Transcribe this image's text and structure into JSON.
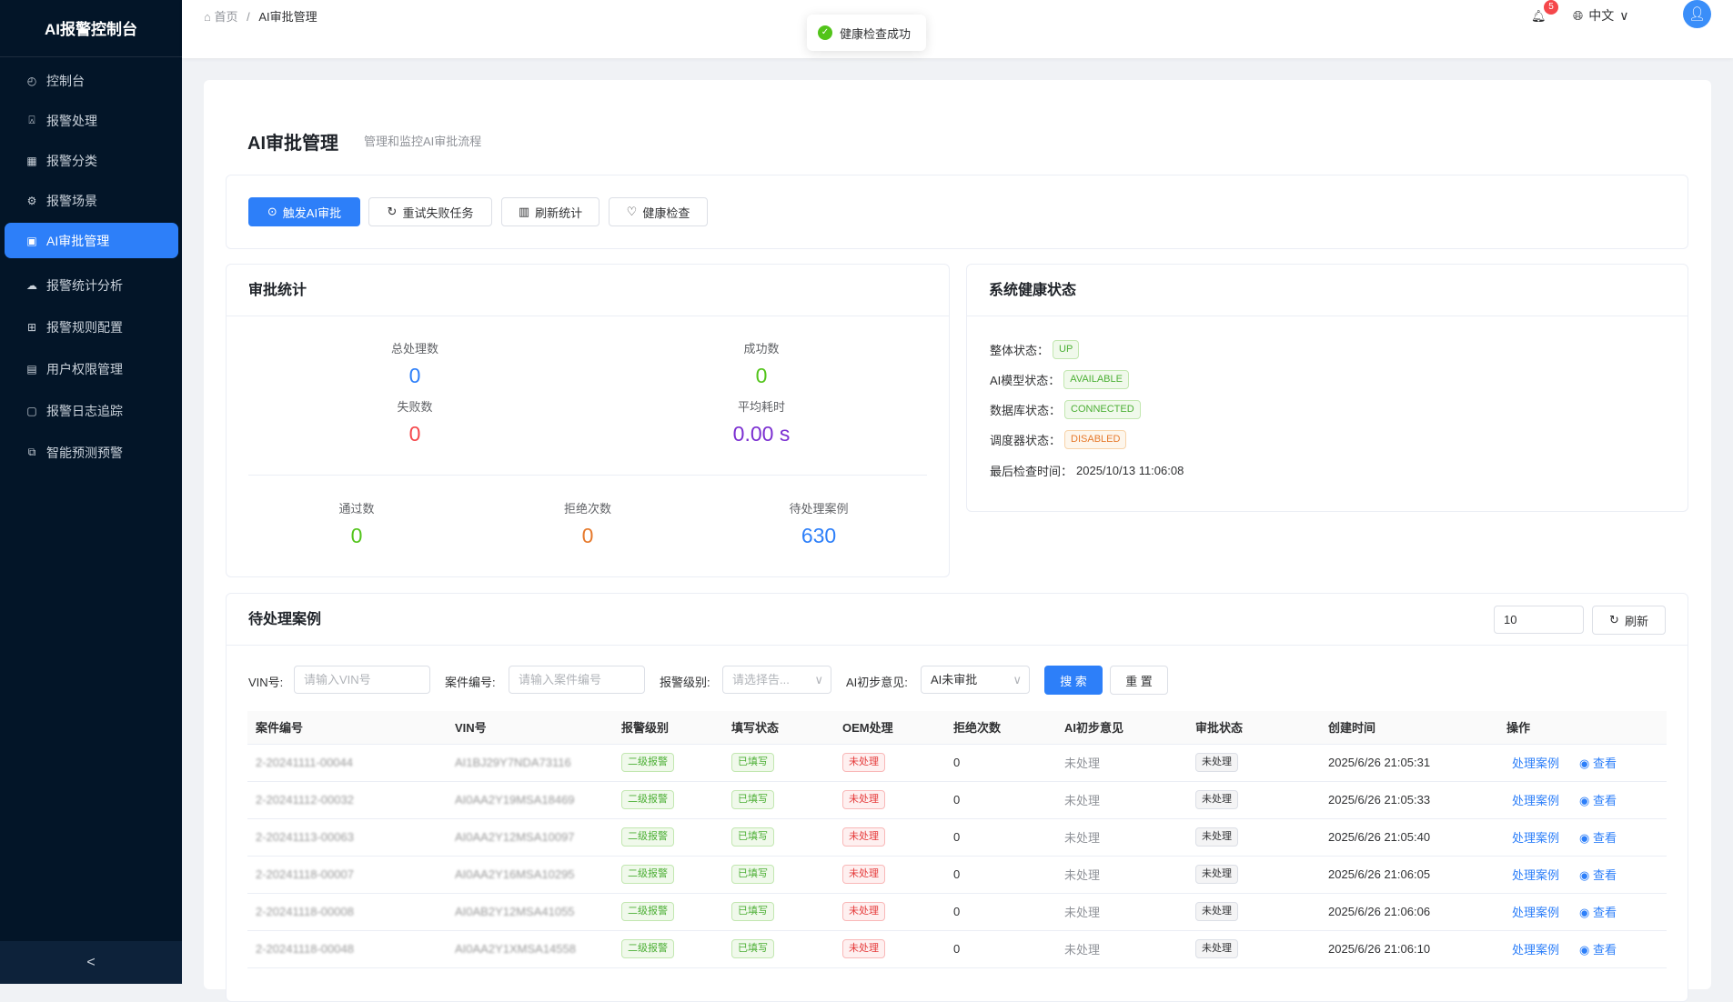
{
  "sidebar": {
    "title": "AI报警控制台",
    "items": [
      {
        "label": "控制台",
        "icon": "dashboard-icon"
      },
      {
        "label": "报警处理",
        "icon": "alarm-icon"
      },
      {
        "label": "报警分类",
        "icon": "grid-icon"
      },
      {
        "label": "报警场景",
        "icon": "gear-icon"
      },
      {
        "label": "AI审批管理",
        "icon": "monitor-icon",
        "active": true
      },
      {
        "label": "报警统计分析",
        "icon": "upload-cloud-icon"
      },
      {
        "label": "报警规则配置",
        "icon": "rules-icon"
      },
      {
        "label": "用户权限管理",
        "icon": "user-doc-icon"
      },
      {
        "label": "报警日志追踪",
        "icon": "calendar-icon"
      },
      {
        "label": "智能预测预警",
        "icon": "chart-icon"
      }
    ],
    "collapse": "<"
  },
  "header": {
    "breadcrumb_home": "首页",
    "breadcrumb_sep": "/",
    "breadcrumb_current": "AI审批管理",
    "notification_count": "5",
    "language": "中文"
  },
  "toast": {
    "message": "健康检查成功",
    "color": "#52c41a"
  },
  "page": {
    "title": "AI审批管理",
    "subtitle": "管理和监控AI审批流程"
  },
  "toolbar": {
    "trigger": "触发AI审批",
    "retry": "重试失败任务",
    "refresh": "刷新统计",
    "health": "健康检查"
  },
  "stats": {
    "title": "审批统计",
    "total_label": "总处理数",
    "total": "0",
    "success_label": "成功数",
    "success": "0",
    "fail_label": "失败数",
    "fail": "0",
    "avg_label": "平均耗时",
    "avg": "0.00 s",
    "pass_label": "通过数",
    "pass": "0",
    "reject_label": "拒绝次数",
    "reject": "0",
    "pending_label": "待处理案例",
    "pending": "630"
  },
  "health": {
    "title": "系统健康状态",
    "overall_label": "整体状态：",
    "overall": "UP",
    "model_label": "AI模型状态：",
    "model": "AVAILABLE",
    "db_label": "数据库状态：",
    "db": "CONNECTED",
    "scheduler_label": "调度器状态：",
    "scheduler": "DISABLED",
    "last_label": "最后检查时间：",
    "last": "2025/10/13 11:06:08"
  },
  "pending": {
    "title": "待处理案例",
    "limit": "10",
    "refresh": "刷新",
    "filters": {
      "vin_label": "VIN号:",
      "vin_placeholder": "请输入VIN号",
      "case_label": "案件编号:",
      "case_placeholder": "请输入案件编号",
      "level_label": "报警级别:",
      "level_placeholder": "请选择告...",
      "ai_label": "AI初步意见:",
      "ai_value": "AI未审批",
      "search": "搜 索",
      "reset": "重 置"
    },
    "columns": [
      "案件编号",
      "VIN号",
      "报警级别",
      "填写状态",
      "OEM处理",
      "拒绝次数",
      "AI初步意见",
      "审批状态",
      "创建时间",
      "操作"
    ],
    "action_process": "处理案例",
    "action_view": "查看",
    "rows": [
      {
        "case": "2-20241111-00044",
        "vin": "AI1BJ29Y7NDA73116",
        "level": "二级报警",
        "fill": "已填写",
        "oem": "未处理",
        "rejects": "0",
        "ai": "未处理",
        "status": "未处理",
        "created": "2025/6/26 21:05:31"
      },
      {
        "case": "2-20241112-00032",
        "vin": "AI0AA2Y19MSA18469",
        "level": "二级报警",
        "fill": "已填写",
        "oem": "未处理",
        "rejects": "0",
        "ai": "未处理",
        "status": "未处理",
        "created": "2025/6/26 21:05:33"
      },
      {
        "case": "2-20241113-00063",
        "vin": "AI0AA2Y12MSA10097",
        "level": "二级报警",
        "fill": "已填写",
        "oem": "未处理",
        "rejects": "0",
        "ai": "未处理",
        "status": "未处理",
        "created": "2025/6/26 21:05:40"
      },
      {
        "case": "2-20241118-00007",
        "vin": "AI0AA2Y16MSA10295",
        "level": "二级报警",
        "fill": "已填写",
        "oem": "未处理",
        "rejects": "0",
        "ai": "未处理",
        "status": "未处理",
        "created": "2025/6/26 21:06:05"
      },
      {
        "case": "2-20241118-00008",
        "vin": "AI0AB2Y12MSA41055",
        "level": "二级报警",
        "fill": "已填写",
        "oem": "未处理",
        "rejects": "0",
        "ai": "未处理",
        "status": "未处理",
        "created": "2025/6/26 21:06:06"
      },
      {
        "case": "2-20241118-00048",
        "vin": "AI0AA2Y1XMSA14558",
        "level": "二级报警",
        "fill": "已填写",
        "oem": "未处理",
        "rejects": "0",
        "ai": "未处理",
        "status": "未处理",
        "created": "2025/6/26 21:06:10"
      }
    ]
  },
  "colors": {
    "primary": "#2d7ff9",
    "success": "#52c41a",
    "danger": "#f5474b",
    "warning": "#e6792b",
    "purple": "#7b2fd1",
    "sidebar": "#031528"
  }
}
